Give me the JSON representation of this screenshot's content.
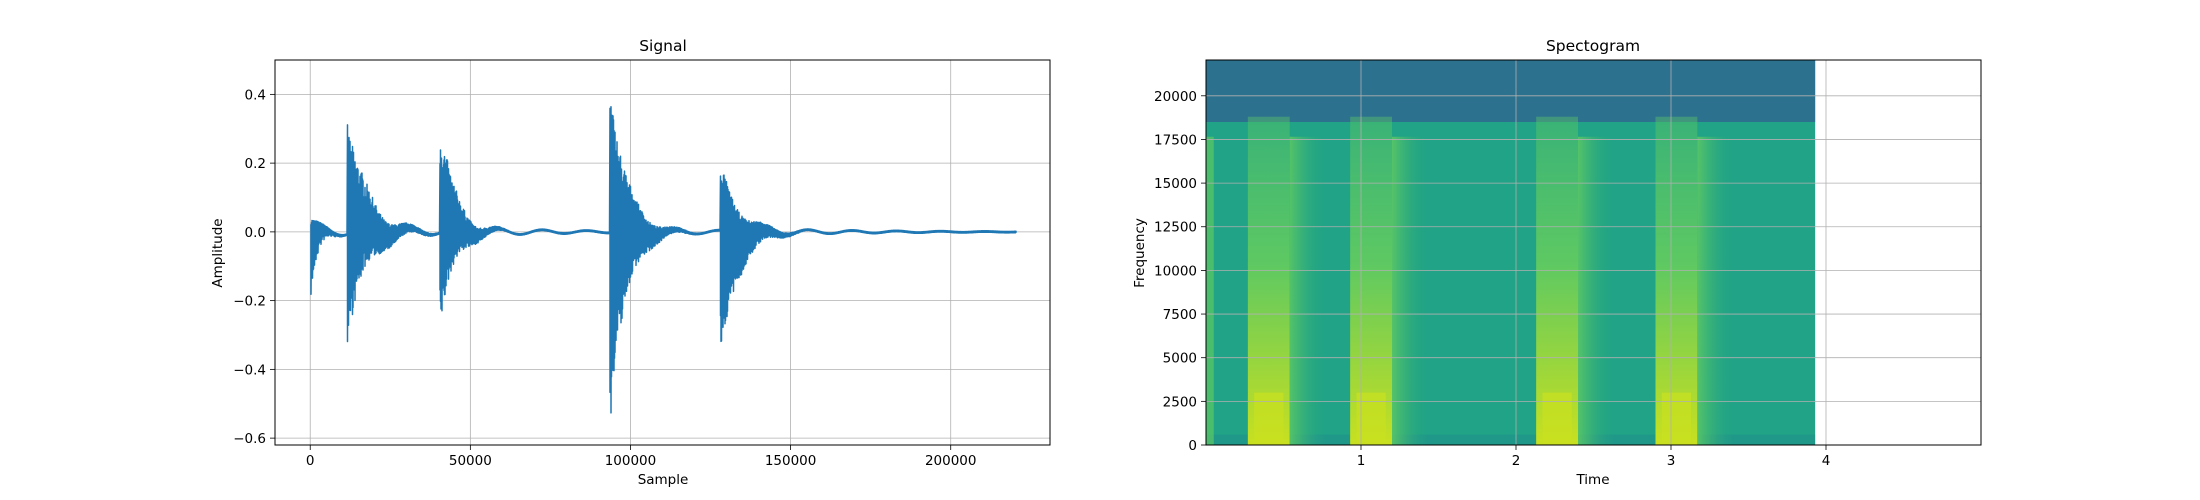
{
  "chart_data": [
    {
      "type": "line",
      "title": "Signal",
      "xlabel": "Sample",
      "ylabel": "Amplitude",
      "xlim": [
        -11000,
        231000
      ],
      "ylim": [
        -0.62,
        0.5
      ],
      "xticks": [
        0,
        50000,
        100000,
        150000,
        200000
      ],
      "xtick_labels": [
        "0",
        "50000",
        "100000",
        "150000",
        "200000"
      ],
      "yticks": [
        -0.6,
        -0.4,
        -0.2,
        0.0,
        0.2,
        0.4
      ],
      "ytick_labels": [
        "−0.6",
        "−0.4",
        "−0.2",
        "0.0",
        "0.2",
        "0.4"
      ],
      "grid": true,
      "series_color": "#1f77b4",
      "sample_count": 220500,
      "bursts": [
        {
          "onset": 0,
          "peak_pos": 0.04,
          "peak_neg": -0.21,
          "decay": 2500,
          "ring_amp": 0.02
        },
        {
          "onset": 11500,
          "peak_pos": 0.34,
          "peak_neg": -0.31,
          "decay": 6000,
          "ring_amp": 0.015
        },
        {
          "onset": 40500,
          "peak_pos": 0.33,
          "peak_neg": -0.28,
          "decay": 4500,
          "ring_amp": 0.01
        },
        {
          "onset": 93500,
          "peak_pos": 0.45,
          "peak_neg": -0.56,
          "decay": 5000,
          "ring_amp": 0.012
        },
        {
          "onset": 128000,
          "peak_pos": 0.2,
          "peak_neg": -0.38,
          "decay": 5500,
          "ring_amp": 0.01
        }
      ]
    },
    {
      "type": "heatmap",
      "title": "Spectogram",
      "xlabel": "Time",
      "ylabel": "Frequency",
      "xlim": [
        0,
        5.0
      ],
      "ylim": [
        0,
        22050
      ],
      "xticks": [
        1,
        2,
        3,
        4
      ],
      "xtick_labels": [
        "1",
        "2",
        "3",
        "4"
      ],
      "yticks": [
        0,
        2500,
        5000,
        7500,
        10000,
        12500,
        15000,
        17500,
        20000
      ],
      "ytick_labels": [
        "0",
        "2500",
        "5000",
        "7500",
        "10000",
        "12500",
        "15000",
        "17500",
        "20000"
      ],
      "grid": true,
      "data_end_time": 3.93,
      "colormap": "viridis",
      "colors": {
        "background": "#20a386",
        "high_band": "#2c728e",
        "bright": "#c8e020",
        "mid": "#5ec962",
        "low": "#21918c"
      },
      "cutoff_frequency": 18500,
      "onsets": [
        0.27,
        0.93,
        2.13,
        2.9
      ],
      "pre_onset_strip": [
        0.0,
        0.05
      ]
    }
  ]
}
